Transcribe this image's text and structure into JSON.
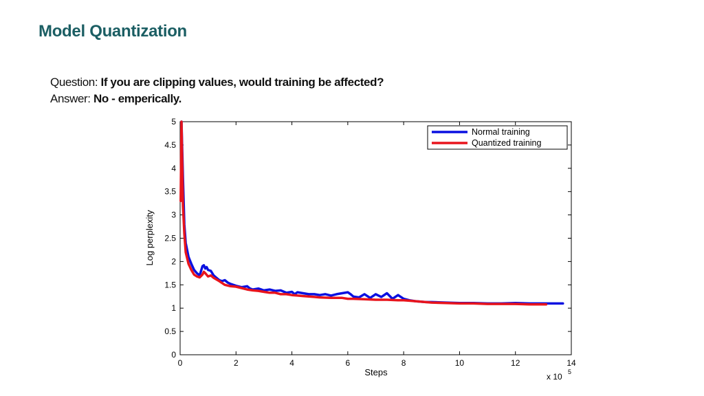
{
  "slide": {
    "title": "Model Quantization",
    "question_label": "Question:",
    "question_text": "If you are clipping values, would training be affected?",
    "answer_label": "Answer:",
    "answer_text": "No - emperically."
  },
  "colors": {
    "title": "#1b5e63",
    "normal": "#0a10e0",
    "quantized": "#e8141c"
  },
  "chart_data": {
    "type": "line",
    "title": "",
    "xlabel": "Steps",
    "ylabel": "Log perplexity",
    "x_multiplier": "x 10",
    "x_multiplier_exp": "5",
    "xlim": [
      0,
      14
    ],
    "ylim": [
      0,
      5
    ],
    "xticks": [
      "0",
      "2",
      "4",
      "6",
      "8",
      "10",
      "12",
      "14"
    ],
    "yticks": [
      "0",
      "0.5",
      "1",
      "1.5",
      "2",
      "2.5",
      "3",
      "3.5",
      "4",
      "4.5",
      "5"
    ],
    "grid": false,
    "legend_position": "top-right",
    "series": [
      {
        "name": "Normal training",
        "color": "#0a10e0",
        "x": [
          0.05,
          0.1,
          0.15,
          0.2,
          0.3,
          0.4,
          0.5,
          0.6,
          0.7,
          0.8,
          0.85,
          0.9,
          0.95,
          1.0,
          1.1,
          1.2,
          1.3,
          1.4,
          1.5,
          1.6,
          1.7,
          1.8,
          1.9,
          2.0,
          2.2,
          2.4,
          2.5,
          2.6,
          2.8,
          3.0,
          3.2,
          3.4,
          3.6,
          3.8,
          4.0,
          4.1,
          4.2,
          4.4,
          4.6,
          4.8,
          5.0,
          5.2,
          5.4,
          5.6,
          5.8,
          6.0,
          6.1,
          6.2,
          6.4,
          6.6,
          6.8,
          7.0,
          7.2,
          7.4,
          7.6,
          7.8,
          7.9,
          8.0,
          8.2,
          8.4,
          8.6,
          8.8,
          9.0,
          9.5,
          10.0,
          10.5,
          11.0,
          11.5,
          12.0,
          12.5,
          13.0,
          13.5,
          13.7
        ],
        "y": [
          5.0,
          3.8,
          2.8,
          2.4,
          2.1,
          1.95,
          1.82,
          1.75,
          1.7,
          1.9,
          1.92,
          1.85,
          1.88,
          1.82,
          1.8,
          1.7,
          1.65,
          1.6,
          1.58,
          1.6,
          1.55,
          1.52,
          1.5,
          1.48,
          1.45,
          1.47,
          1.42,
          1.4,
          1.42,
          1.38,
          1.4,
          1.37,
          1.38,
          1.33,
          1.35,
          1.3,
          1.34,
          1.32,
          1.3,
          1.3,
          1.28,
          1.3,
          1.27,
          1.3,
          1.32,
          1.34,
          1.3,
          1.25,
          1.23,
          1.3,
          1.22,
          1.3,
          1.24,
          1.32,
          1.2,
          1.28,
          1.24,
          1.2,
          1.17,
          1.15,
          1.14,
          1.13,
          1.13,
          1.12,
          1.11,
          1.11,
          1.1,
          1.1,
          1.11,
          1.1,
          1.1,
          1.1,
          1.1
        ]
      },
      {
        "name": "Quantized training",
        "color": "#e8141c",
        "x": [
          0.02,
          0.05,
          0.1,
          0.15,
          0.2,
          0.3,
          0.4,
          0.5,
          0.6,
          0.7,
          0.8,
          0.85,
          0.9,
          1.0,
          1.1,
          1.2,
          1.4,
          1.6,
          1.8,
          2.0,
          2.2,
          2.4,
          2.6,
          2.8,
          3.0,
          3.2,
          3.4,
          3.6,
          3.8,
          4.0,
          4.2,
          4.4,
          4.6,
          4.8,
          5.0,
          5.4,
          5.8,
          6.0,
          6.2,
          6.6,
          7.0,
          7.4,
          7.8,
          8.0,
          8.2,
          8.6,
          9.0,
          9.5,
          10.0,
          10.5,
          11.0,
          11.5,
          12.0,
          12.5,
          13.0,
          13.1
        ],
        "y": [
          3.3,
          5.0,
          3.2,
          2.6,
          2.2,
          1.95,
          1.82,
          1.72,
          1.68,
          1.66,
          1.72,
          1.78,
          1.75,
          1.68,
          1.7,
          1.65,
          1.58,
          1.5,
          1.47,
          1.46,
          1.43,
          1.4,
          1.38,
          1.37,
          1.35,
          1.33,
          1.33,
          1.3,
          1.3,
          1.28,
          1.27,
          1.26,
          1.25,
          1.24,
          1.23,
          1.22,
          1.22,
          1.2,
          1.2,
          1.19,
          1.18,
          1.18,
          1.17,
          1.17,
          1.16,
          1.14,
          1.12,
          1.11,
          1.1,
          1.1,
          1.09,
          1.09,
          1.09,
          1.08,
          1.08,
          1.08
        ]
      }
    ]
  }
}
